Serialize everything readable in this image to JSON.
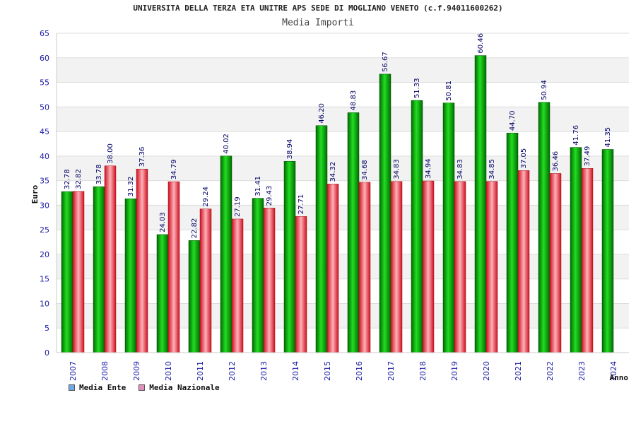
{
  "title": "UNIVERSITA DELLA TERZA ETA UNITRE APS SEDE DI MOGLIANO VENETO (c.f.94011600262)",
  "subtitle": "Media Importi",
  "legend": [
    {
      "label": "Media Ente",
      "color": "#6fa8e6"
    },
    {
      "label": "Media Nazionale",
      "color": "#e08fb8"
    }
  ],
  "chart_data": {
    "type": "bar",
    "title": "UNIVERSITA DELLA TERZA ETA UNITRE APS SEDE DI MOGLIANO VENETO (c.f.94011600262)",
    "subtitle": "Media Importi",
    "xlabel": "Anno",
    "ylabel": "Euro",
    "ylim": [
      0,
      65
    ],
    "yticks": [
      0,
      5,
      10,
      15,
      20,
      25,
      30,
      35,
      40,
      45,
      50,
      55,
      60,
      65
    ],
    "grid": true,
    "legend_position": "bottom-left",
    "categories": [
      "2007",
      "2008",
      "2009",
      "2010",
      "2011",
      "2012",
      "2013",
      "2014",
      "2015",
      "2016",
      "2017",
      "2018",
      "2019",
      "2020",
      "2021",
      "2022",
      "2023",
      "2024"
    ],
    "series": [
      {
        "name": "Media Ente",
        "color": "#00b000",
        "values": [
          32.78,
          33.78,
          31.32,
          24.03,
          22.82,
          40.02,
          31.41,
          38.94,
          46.2,
          48.83,
          56.67,
          51.33,
          50.81,
          60.46,
          44.7,
          50.94,
          41.76,
          41.35
        ],
        "labels": [
          "32.78",
          "33.78",
          "31.32",
          "24.03",
          "22.82",
          "40.02",
          "31.41",
          "38.94",
          "46.20",
          "48.83",
          "56.67",
          "51.33",
          "50.81",
          "60.46",
          "44.70",
          "50.94",
          "41.76",
          "41.35"
        ]
      },
      {
        "name": "Media Nazionale",
        "color": "#e8202a",
        "values": [
          32.82,
          38.0,
          37.36,
          34.79,
          29.24,
          27.19,
          29.43,
          27.71,
          34.32,
          34.68,
          34.83,
          34.94,
          34.83,
          34.85,
          37.05,
          36.46,
          37.49,
          null
        ],
        "labels": [
          "32.82",
          "38.00",
          "37.36",
          "34.79",
          "29.24",
          "27.19",
          "29.43",
          "27.71",
          "34.32",
          "34.68",
          "34.83",
          "34.94",
          "34.83",
          "34.85",
          "37.05",
          "36.46",
          "37.49",
          ""
        ]
      }
    ]
  }
}
